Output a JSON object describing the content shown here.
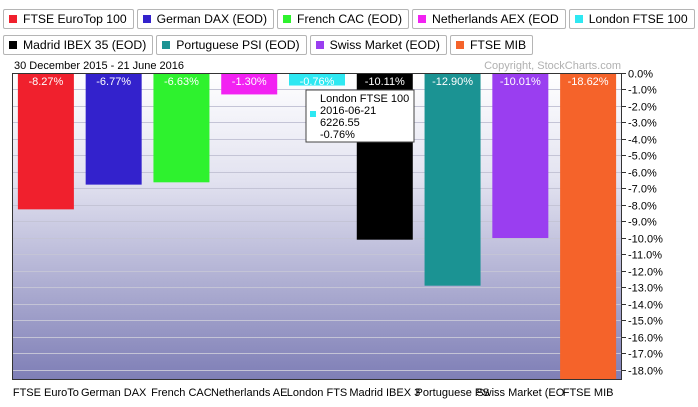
{
  "legend": {
    "row1": [
      {
        "label": "FTSE EuroTop 100",
        "color": "#f0202d"
      },
      {
        "label": "German DAX (EOD)",
        "color": "#3322cc"
      },
      {
        "label": "French CAC (EOD)",
        "color": "#2ef22e"
      },
      {
        "label": "Netherlands AEX (EOD",
        "color": "#f222f2"
      },
      {
        "label": "London FTSE 100",
        "color": "#2ee8f2"
      }
    ],
    "row2": [
      {
        "label": "Madrid IBEX 35 (EOD)",
        "color": "#000000"
      },
      {
        "label": "Portuguese PSI (EOD)",
        "color": "#1b9393"
      },
      {
        "label": "Swiss Market (EOD)",
        "color": "#9a3ef0"
      },
      {
        "label": "FTSE MIB",
        "color": "#f5632a"
      }
    ]
  },
  "date_range": "30 December 2015 - 21 June 2016",
  "copyright": "Copyright, StockCharts.com",
  "tooltip": {
    "name": "London FTSE 100",
    "date": "2016-06-21",
    "price": "6226.55",
    "change": "-0.76%"
  },
  "chart_data": {
    "type": "bar",
    "categories": [
      "FTSE EuroTop 100",
      "German DAX (EOD)",
      "French CAC (EOD)",
      "Netherlands AEX (EOD)",
      "London FTSE 100",
      "Madrid IBEX 35 (EOD)",
      "Portuguese PSI (EOD)",
      "Swiss Market (EOD)",
      "FTSE MIB"
    ],
    "category_labels": [
      "FTSE EuroTo",
      "German DAX",
      "French CAC",
      "Netherlands AE",
      "London FTS",
      "Madrid IBEX 3",
      "Portuguese PS",
      "Swiss Market (EO",
      "FTSE MIB"
    ],
    "values": [
      -8.27,
      -6.77,
      -6.63,
      -1.3,
      -0.76,
      -10.11,
      -12.9,
      -10.01,
      -18.62
    ],
    "value_labels": [
      "-8.27%",
      "-6.77%",
      "-6.63%",
      "-1.30%",
      "-0.76%",
      "-10.11%",
      "-12.90%",
      "-10.01%",
      "-18.62%"
    ],
    "colors": [
      "#f0202d",
      "#3322cc",
      "#2ef22e",
      "#f222f2",
      "#2ee8f2",
      "#000000",
      "#1b9393",
      "#9a3ef0",
      "#f5632a"
    ],
    "ylim": [
      -18.62,
      0
    ],
    "y_ticks": [
      0,
      -1,
      -2,
      -3,
      -4,
      -5,
      -6,
      -7,
      -8,
      -9,
      -10,
      -11,
      -12,
      -13,
      -14,
      -15,
      -16,
      -17,
      -18
    ],
    "y_tick_labels": [
      "0.0%",
      "-1.0%",
      "-2.0%",
      "-3.0%",
      "-4.0%",
      "-5.0%",
      "-6.0%",
      "-7.0%",
      "-8.0%",
      "-9.0%",
      "-10.0%",
      "-11.0%",
      "-12.0%",
      "-13.0%",
      "-14.0%",
      "-15.0%",
      "-16.0%",
      "-17.0%",
      "-18.0%"
    ],
    "highlighted_category": "London FTSE 100",
    "grid": true,
    "legend_position": "top"
  }
}
